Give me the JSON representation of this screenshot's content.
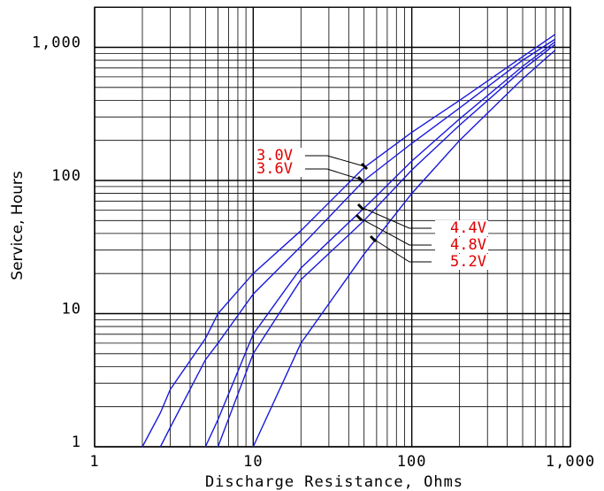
{
  "chart_data": {
    "type": "line",
    "x_label": "Discharge Resistance, Ohms",
    "y_label": "Service, Hours",
    "x": [
      2,
      2.6,
      3,
      5,
      6,
      10,
      20,
      50,
      100,
      200,
      500,
      800
    ],
    "series": [
      {
        "name": "3.0V",
        "color": "#1a1adc",
        "values": [
          1,
          1.8,
          2.7,
          6.5,
          10,
          20,
          42,
          125,
          230,
          400,
          850,
          1250
        ]
      },
      {
        "name": "3.6V",
        "color": "#1a1adc",
        "values": [
          null,
          1,
          1.4,
          4.5,
          6,
          14,
          32,
          100,
          190,
          350,
          800,
          1150
        ]
      },
      {
        "name": "4.4V",
        "color": "#1a1adc",
        "values": [
          null,
          null,
          null,
          1,
          1.6,
          7,
          22,
          62,
          140,
          290,
          720,
          1100
        ]
      },
      {
        "name": "4.8V",
        "color": "#1a1adc",
        "values": [
          null,
          null,
          null,
          null,
          1,
          5,
          18,
          50,
          120,
          260,
          680,
          1050
        ]
      },
      {
        "name": "5.2V",
        "color": "#1a1adc",
        "values": [
          null,
          null,
          null,
          null,
          null,
          1,
          6,
          28,
          80,
          200,
          580,
          950
        ]
      }
    ],
    "xlim": [
      1,
      1000
    ],
    "ylim": [
      1,
      2000
    ],
    "xticks": [
      1,
      10,
      100,
      {
        "value": 1000,
        "label": "1,000"
      }
    ],
    "yticks": [
      1,
      10,
      100,
      {
        "value": 1000,
        "label": "1,000"
      }
    ],
    "xscale": "log",
    "yscale": "log",
    "grid": true
  }
}
